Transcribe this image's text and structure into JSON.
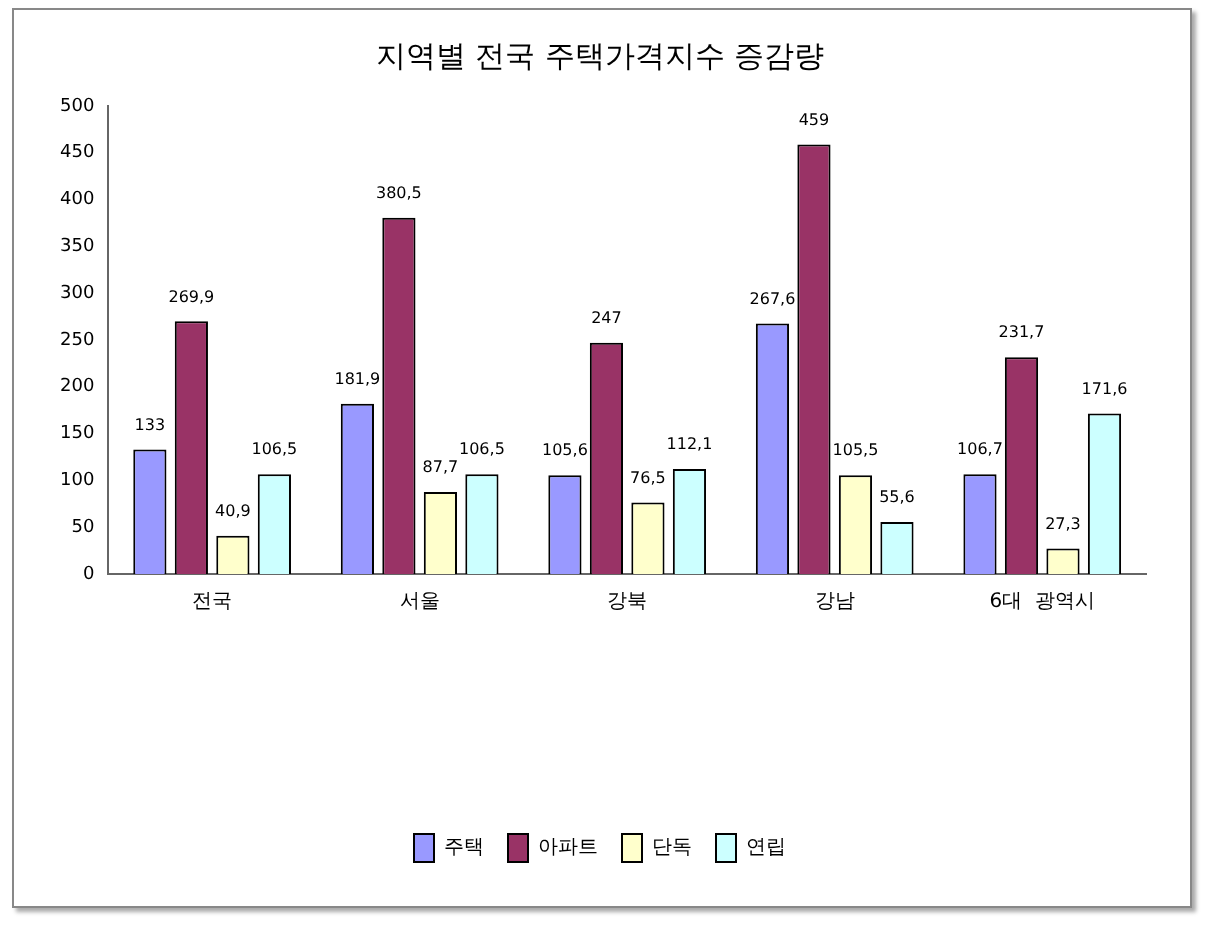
{
  "chart_data": {
    "type": "bar",
    "title": "지역별 전국 주택가격지수 증감량",
    "categories": [
      "전국",
      "서울",
      "강북",
      "강남",
      "6대  광역시"
    ],
    "series": [
      {
        "name": "주택",
        "color": "#9999ff",
        "values": [
          133,
          181.9,
          105.6,
          267.6,
          106.7
        ],
        "value_labels": [
          "133",
          "181,9",
          "105,6",
          "267,6",
          "106,7"
        ]
      },
      {
        "name": "아파트",
        "color": "#993366",
        "values": [
          269.9,
          380.5,
          247,
          459,
          231.7
        ],
        "value_labels": [
          "269,9",
          "380,5",
          "247",
          "459",
          "231,7"
        ]
      },
      {
        "name": "단독",
        "color": "#ffffcc",
        "values": [
          40.9,
          87.7,
          76.5,
          105.5,
          27.3
        ],
        "value_labels": [
          "40,9",
          "87,7",
          "76,5",
          "105,5",
          "27,3"
        ]
      },
      {
        "name": "연립",
        "color": "#ccffff",
        "values": [
          106.5,
          106.5,
          112.1,
          55.6,
          171.6
        ],
        "value_labels": [
          "106,5",
          "106,5",
          "112,1",
          "55,6",
          "171,6"
        ]
      }
    ],
    "ylim": [
      0,
      500
    ],
    "yticks": [
      0,
      50,
      100,
      150,
      200,
      250,
      300,
      350,
      400,
      450,
      500
    ],
    "grid": false,
    "legend": "bottom"
  }
}
